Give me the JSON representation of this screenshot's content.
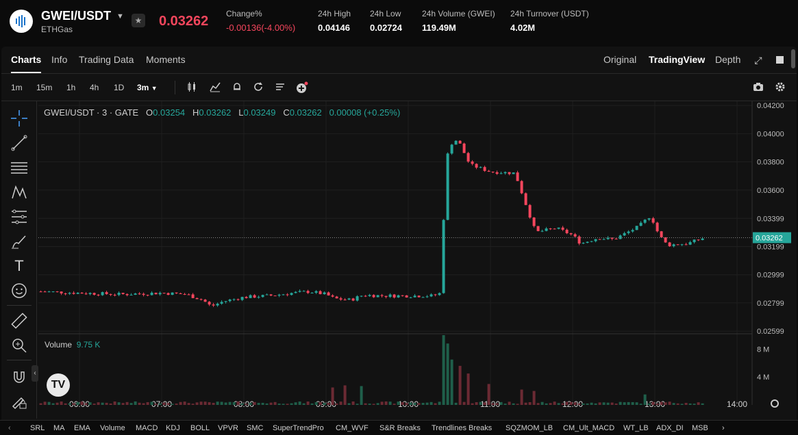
{
  "header": {
    "symbol": "GWEI/USDT",
    "subtitle": "ETHGas",
    "price": "0.03262",
    "stats": [
      {
        "label": "Change%",
        "value": "-0.00136(-4.00%)"
      },
      {
        "label": "24h High",
        "value": "0.04146"
      },
      {
        "label": "24h Low",
        "value": "0.02724"
      },
      {
        "label": "24h Volume (GWEI)",
        "value": "119.49M"
      },
      {
        "label": "24h Turnover (USDT)",
        "value": "4.02M"
      }
    ]
  },
  "tabs": [
    "Charts",
    "Info",
    "Trading Data",
    "Moments"
  ],
  "views": [
    "Original",
    "TradingView",
    "Depth"
  ],
  "timeframes": [
    "1m",
    "15m",
    "1h",
    "4h",
    "1D",
    "3m"
  ],
  "legend": {
    "pair": "GWEI/USDT · 3 · GATE",
    "o_label": "O",
    "o": "0.03254",
    "h_label": "H",
    "h": "0.03262",
    "l_label": "L",
    "l": "0.03249",
    "c_label": "C",
    "c": "0.03262",
    "chg": "0.00008 (+0.25%)"
  },
  "volume_legend": {
    "label": "Volume",
    "value": "9.75 K"
  },
  "tv_logo": "TV",
  "indicators": [
    "SRL",
    "MA",
    "EMA",
    "Volume",
    "MACD",
    "KDJ",
    "BOLL",
    "VPVR",
    "SMC",
    "SuperTrendPro",
    "CM_WVF",
    "S&R Breaks",
    "Trendlines Breaks",
    "SQZMOM_LB",
    "CM_Ult_MACD",
    "WT_LB",
    "ADX_DI",
    "MSB"
  ],
  "colors": {
    "up": "#26a69a",
    "down": "#f6465d",
    "up_vol": "#1f5f4a",
    "down_vol": "#6b2a33"
  },
  "chart_data": {
    "type": "candlestick",
    "price_axis_ticks": [
      "0.04200",
      "0.04000",
      "0.03800",
      "0.03600",
      "0.03399",
      "0.03199",
      "0.02999",
      "0.02799",
      "0.02599"
    ],
    "volume_axis_ticks": [
      "8 M",
      "4 M"
    ],
    "time_axis_ticks": [
      "06:00",
      "07:00",
      "08:00",
      "09:00",
      "10:00",
      "11:00",
      "12:00",
      "13:00",
      "14:00"
    ],
    "last_price_label": "0.03262",
    "ylim": [
      0.0259,
      0.0423
    ],
    "vol_max": 10,
    "path": [
      [
        5.53,
        0.0288
      ],
      [
        6.0,
        0.0287
      ],
      [
        6.5,
        0.0286
      ],
      [
        7.0,
        0.0287
      ],
      [
        7.3,
        0.0286
      ],
      [
        7.5,
        0.0282
      ],
      [
        7.6,
        0.02775
      ],
      [
        7.75,
        0.0281
      ],
      [
        8.0,
        0.0284
      ],
      [
        8.3,
        0.0285
      ],
      [
        8.6,
        0.0287
      ],
      [
        8.8,
        0.0288
      ],
      [
        9.0,
        0.0286
      ],
      [
        9.1,
        0.0283
      ],
      [
        9.3,
        0.0282
      ],
      [
        9.45,
        0.02855
      ],
      [
        9.7,
        0.0285
      ],
      [
        10.0,
        0.0285
      ],
      [
        10.3,
        0.0285
      ],
      [
        10.4,
        0.0287
      ],
      [
        10.45,
        0.0375
      ],
      [
        10.5,
        0.0392
      ],
      [
        10.6,
        0.0396
      ],
      [
        10.75,
        0.0378
      ],
      [
        11.0,
        0.0373
      ],
      [
        11.3,
        0.0372
      ],
      [
        11.4,
        0.0355
      ],
      [
        11.55,
        0.033
      ],
      [
        11.8,
        0.0333
      ],
      [
        12.0,
        0.0328
      ],
      [
        12.1,
        0.0322
      ],
      [
        12.3,
        0.0326
      ],
      [
        12.5,
        0.0325
      ],
      [
        12.6,
        0.0328
      ],
      [
        12.8,
        0.0334
      ],
      [
        12.95,
        0.0342
      ],
      [
        13.05,
        0.0328
      ],
      [
        13.15,
        0.0321
      ],
      [
        13.4,
        0.0322
      ],
      [
        13.6,
        0.03262
      ]
    ],
    "volume_spikes": [
      {
        "t": 9.1,
        "v": 2.5
      },
      {
        "t": 9.25,
        "v": 2.8
      },
      {
        "t": 9.45,
        "v": 2.7
      },
      {
        "t": 10.45,
        "v": 10.0
      },
      {
        "t": 10.5,
        "v": 8.8
      },
      {
        "t": 10.55,
        "v": 6.5
      },
      {
        "t": 10.65,
        "v": 5.6
      },
      {
        "t": 10.75,
        "v": 4.5
      },
      {
        "t": 11.0,
        "v": 3.0
      },
      {
        "t": 11.4,
        "v": 2.2
      },
      {
        "t": 11.55,
        "v": 2.0
      },
      {
        "t": 12.9,
        "v": 1.5
      }
    ]
  }
}
